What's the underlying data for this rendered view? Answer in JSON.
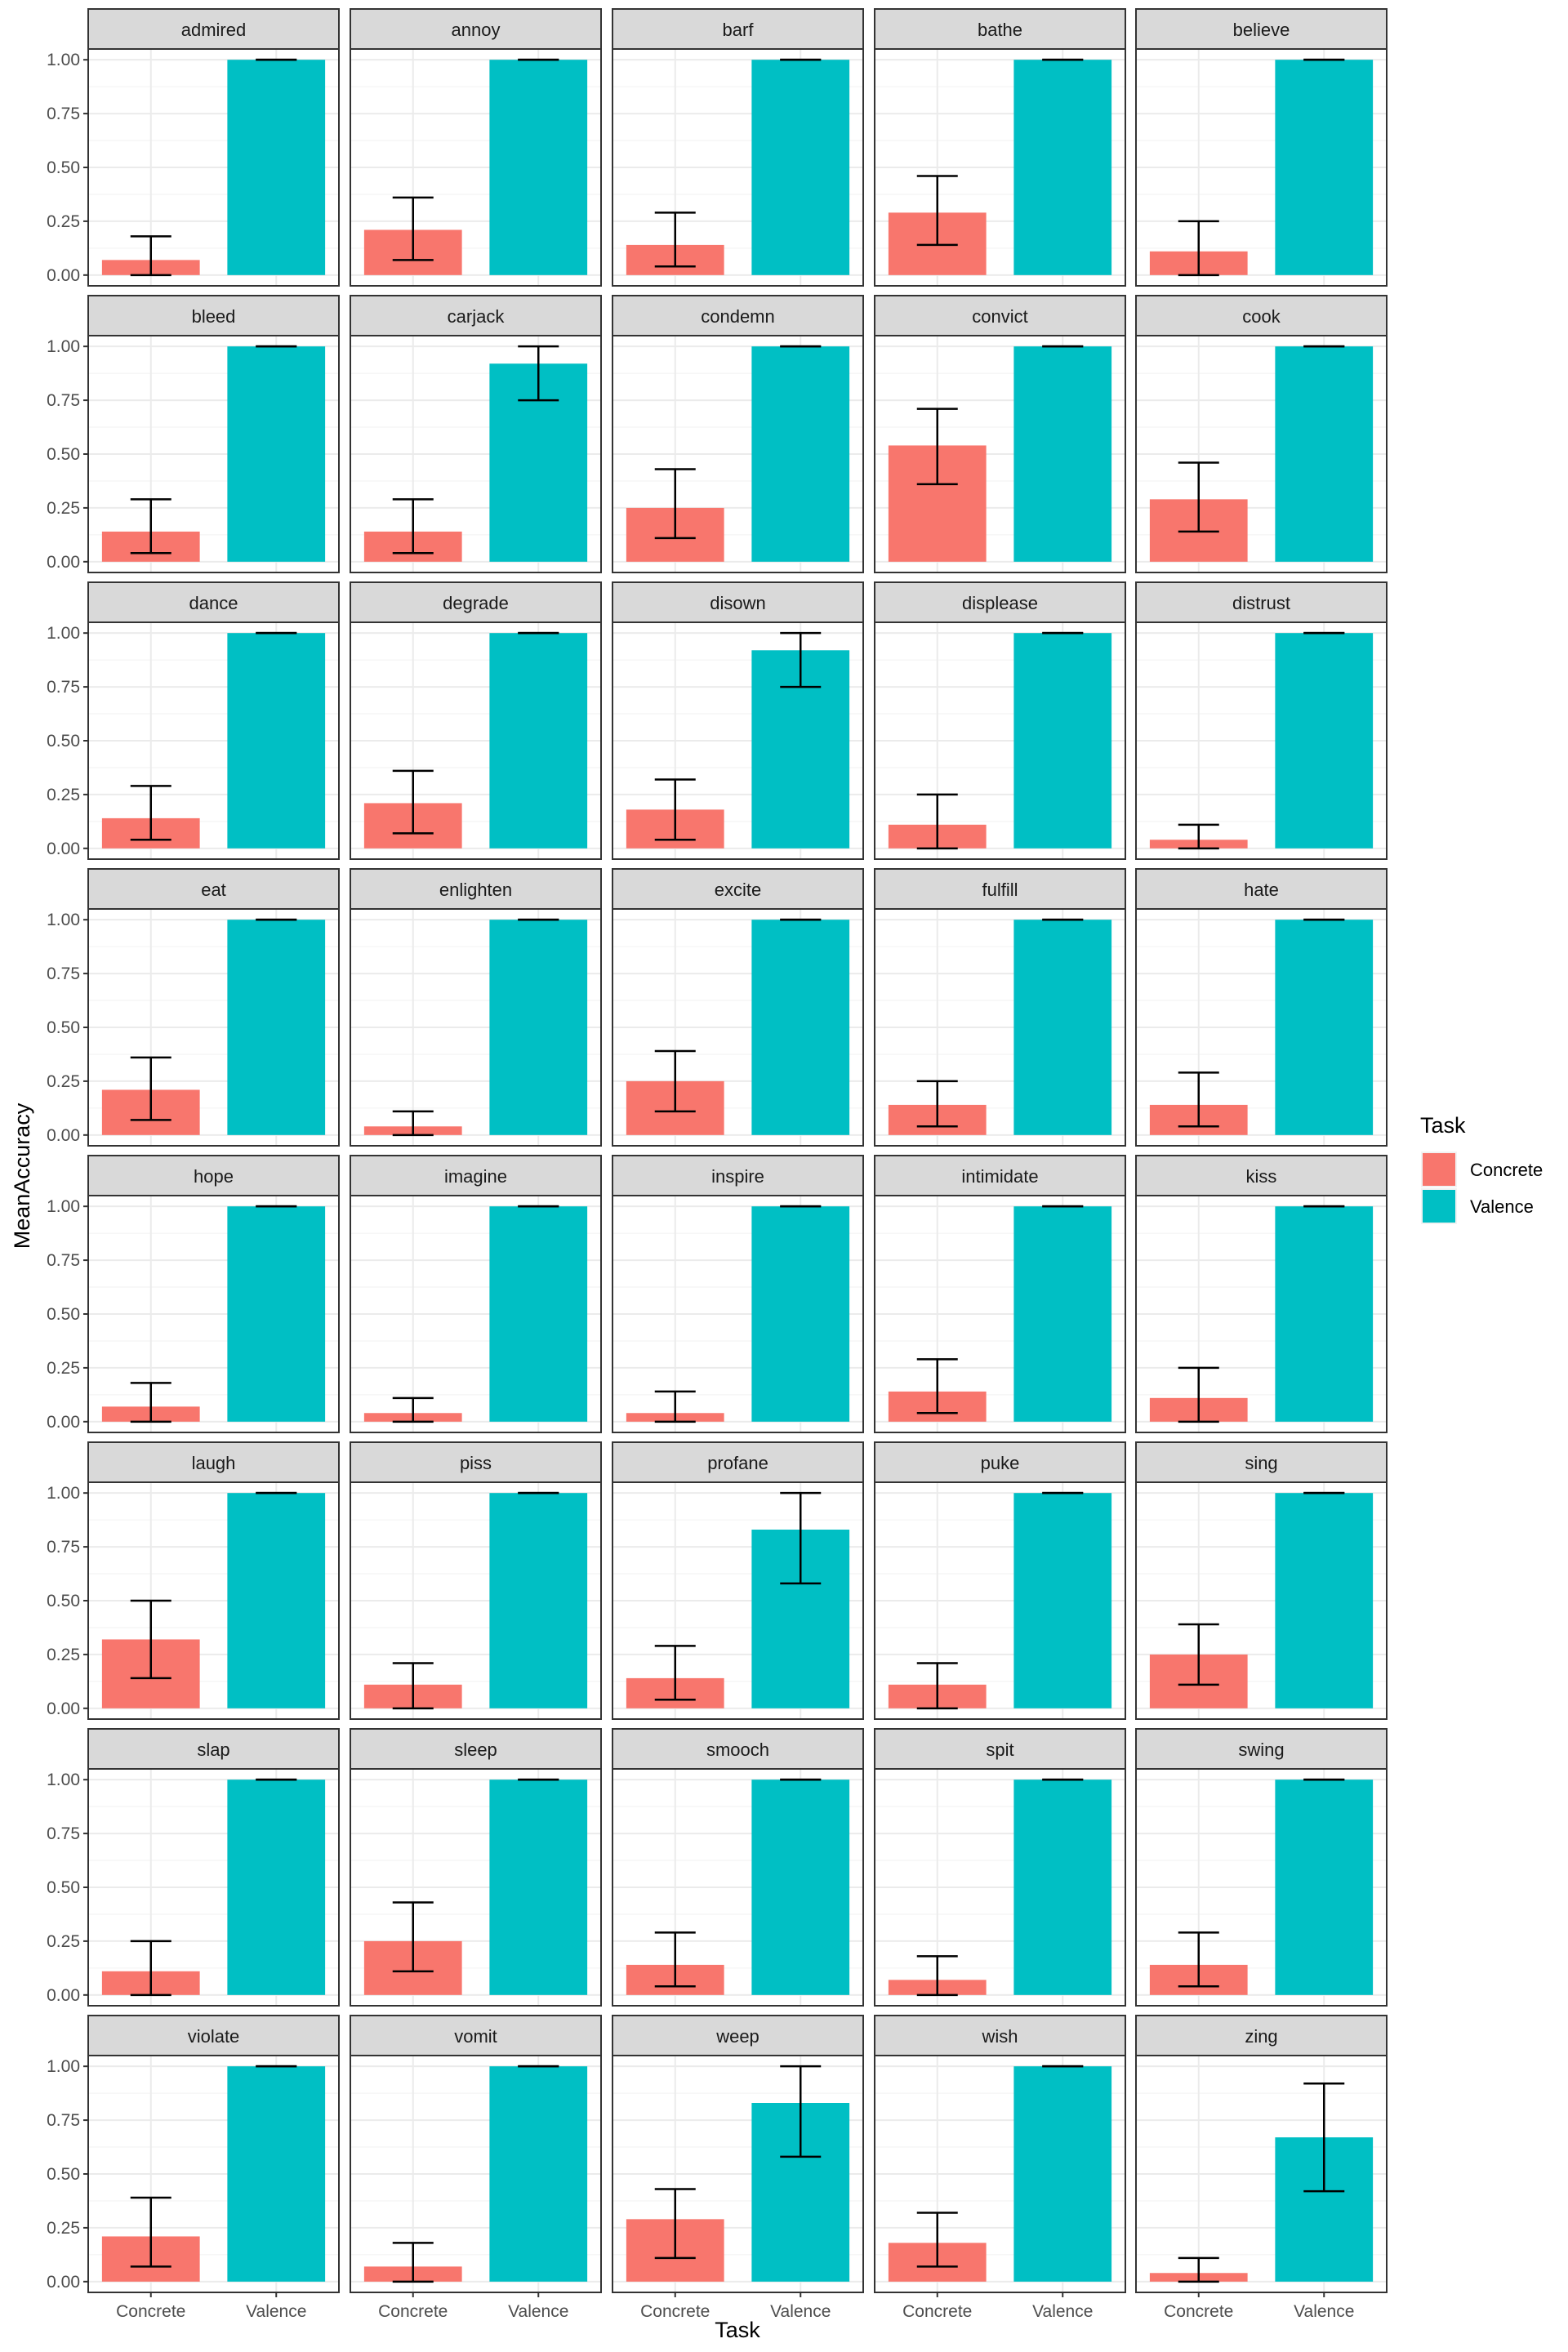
{
  "chart_data": {
    "type": "bar",
    "xlabel": "Task",
    "ylabel": "MeanAccuracy",
    "ylim": [
      0,
      1
    ],
    "yticks": [
      "0.00",
      "0.25",
      "0.50",
      "0.75",
      "1.00"
    ],
    "categories": [
      "Concrete",
      "Valence"
    ],
    "legend": {
      "title": "Task",
      "position": "right",
      "items": [
        {
          "label": "Concrete",
          "color": "#F8766D"
        },
        {
          "label": "Valence",
          "color": "#00BFC4"
        }
      ]
    },
    "facets": [
      {
        "name": "admired",
        "values": [
          0.07,
          1.0
        ],
        "errors": [
          [
            0.0,
            0.18
          ],
          [
            1.0,
            1.0
          ]
        ]
      },
      {
        "name": "annoy",
        "values": [
          0.21,
          1.0
        ],
        "errors": [
          [
            0.07,
            0.36
          ],
          [
            1.0,
            1.0
          ]
        ]
      },
      {
        "name": "barf",
        "values": [
          0.14,
          1.0
        ],
        "errors": [
          [
            0.04,
            0.29
          ],
          [
            1.0,
            1.0
          ]
        ]
      },
      {
        "name": "bathe",
        "values": [
          0.29,
          1.0
        ],
        "errors": [
          [
            0.14,
            0.46
          ],
          [
            1.0,
            1.0
          ]
        ]
      },
      {
        "name": "believe",
        "values": [
          0.11,
          1.0
        ],
        "errors": [
          [
            0.0,
            0.25
          ],
          [
            1.0,
            1.0
          ]
        ]
      },
      {
        "name": "bleed",
        "values": [
          0.14,
          1.0
        ],
        "errors": [
          [
            0.04,
            0.29
          ],
          [
            1.0,
            1.0
          ]
        ]
      },
      {
        "name": "carjack",
        "values": [
          0.14,
          0.92
        ],
        "errors": [
          [
            0.04,
            0.29
          ],
          [
            0.75,
            1.0
          ]
        ]
      },
      {
        "name": "condemn",
        "values": [
          0.25,
          1.0
        ],
        "errors": [
          [
            0.11,
            0.43
          ],
          [
            1.0,
            1.0
          ]
        ]
      },
      {
        "name": "convict",
        "values": [
          0.54,
          1.0
        ],
        "errors": [
          [
            0.36,
            0.71
          ],
          [
            1.0,
            1.0
          ]
        ]
      },
      {
        "name": "cook",
        "values": [
          0.29,
          1.0
        ],
        "errors": [
          [
            0.14,
            0.46
          ],
          [
            1.0,
            1.0
          ]
        ]
      },
      {
        "name": "dance",
        "values": [
          0.14,
          1.0
        ],
        "errors": [
          [
            0.04,
            0.29
          ],
          [
            1.0,
            1.0
          ]
        ]
      },
      {
        "name": "degrade",
        "values": [
          0.21,
          1.0
        ],
        "errors": [
          [
            0.07,
            0.36
          ],
          [
            1.0,
            1.0
          ]
        ]
      },
      {
        "name": "disown",
        "values": [
          0.18,
          0.92
        ],
        "errors": [
          [
            0.04,
            0.32
          ],
          [
            0.75,
            1.0
          ]
        ]
      },
      {
        "name": "displease",
        "values": [
          0.11,
          1.0
        ],
        "errors": [
          [
            0.0,
            0.25
          ],
          [
            1.0,
            1.0
          ]
        ]
      },
      {
        "name": "distrust",
        "values": [
          0.04,
          1.0
        ],
        "errors": [
          [
            0.0,
            0.11
          ],
          [
            1.0,
            1.0
          ]
        ]
      },
      {
        "name": "eat",
        "values": [
          0.21,
          1.0
        ],
        "errors": [
          [
            0.07,
            0.36
          ],
          [
            1.0,
            1.0
          ]
        ]
      },
      {
        "name": "enlighten",
        "values": [
          0.04,
          1.0
        ],
        "errors": [
          [
            0.0,
            0.11
          ],
          [
            1.0,
            1.0
          ]
        ]
      },
      {
        "name": "excite",
        "values": [
          0.25,
          1.0
        ],
        "errors": [
          [
            0.11,
            0.39
          ],
          [
            1.0,
            1.0
          ]
        ]
      },
      {
        "name": "fulfill",
        "values": [
          0.14,
          1.0
        ],
        "errors": [
          [
            0.04,
            0.25
          ],
          [
            1.0,
            1.0
          ]
        ]
      },
      {
        "name": "hate",
        "values": [
          0.14,
          1.0
        ],
        "errors": [
          [
            0.04,
            0.29
          ],
          [
            1.0,
            1.0
          ]
        ]
      },
      {
        "name": "hope",
        "values": [
          0.07,
          1.0
        ],
        "errors": [
          [
            0.0,
            0.18
          ],
          [
            1.0,
            1.0
          ]
        ]
      },
      {
        "name": "imagine",
        "values": [
          0.04,
          1.0
        ],
        "errors": [
          [
            0.0,
            0.11
          ],
          [
            1.0,
            1.0
          ]
        ]
      },
      {
        "name": "inspire",
        "values": [
          0.04,
          1.0
        ],
        "errors": [
          [
            0.0,
            0.14
          ],
          [
            1.0,
            1.0
          ]
        ]
      },
      {
        "name": "intimidate",
        "values": [
          0.14,
          1.0
        ],
        "errors": [
          [
            0.04,
            0.29
          ],
          [
            1.0,
            1.0
          ]
        ]
      },
      {
        "name": "kiss",
        "values": [
          0.11,
          1.0
        ],
        "errors": [
          [
            0.0,
            0.25
          ],
          [
            1.0,
            1.0
          ]
        ]
      },
      {
        "name": "laugh",
        "values": [
          0.32,
          1.0
        ],
        "errors": [
          [
            0.14,
            0.5
          ],
          [
            1.0,
            1.0
          ]
        ]
      },
      {
        "name": "piss",
        "values": [
          0.11,
          1.0
        ],
        "errors": [
          [
            0.0,
            0.21
          ],
          [
            1.0,
            1.0
          ]
        ]
      },
      {
        "name": "profane",
        "values": [
          0.14,
          0.83
        ],
        "errors": [
          [
            0.04,
            0.29
          ],
          [
            0.58,
            1.0
          ]
        ]
      },
      {
        "name": "puke",
        "values": [
          0.11,
          1.0
        ],
        "errors": [
          [
            0.0,
            0.21
          ],
          [
            1.0,
            1.0
          ]
        ]
      },
      {
        "name": "sing",
        "values": [
          0.25,
          1.0
        ],
        "errors": [
          [
            0.11,
            0.39
          ],
          [
            1.0,
            1.0
          ]
        ]
      },
      {
        "name": "slap",
        "values": [
          0.11,
          1.0
        ],
        "errors": [
          [
            0.0,
            0.25
          ],
          [
            1.0,
            1.0
          ]
        ]
      },
      {
        "name": "sleep",
        "values": [
          0.25,
          1.0
        ],
        "errors": [
          [
            0.11,
            0.43
          ],
          [
            1.0,
            1.0
          ]
        ]
      },
      {
        "name": "smooch",
        "values": [
          0.14,
          1.0
        ],
        "errors": [
          [
            0.04,
            0.29
          ],
          [
            1.0,
            1.0
          ]
        ]
      },
      {
        "name": "spit",
        "values": [
          0.07,
          1.0
        ],
        "errors": [
          [
            0.0,
            0.18
          ],
          [
            1.0,
            1.0
          ]
        ]
      },
      {
        "name": "swing",
        "values": [
          0.14,
          1.0
        ],
        "errors": [
          [
            0.04,
            0.29
          ],
          [
            1.0,
            1.0
          ]
        ]
      },
      {
        "name": "violate",
        "values": [
          0.21,
          1.0
        ],
        "errors": [
          [
            0.07,
            0.39
          ],
          [
            1.0,
            1.0
          ]
        ]
      },
      {
        "name": "vomit",
        "values": [
          0.07,
          1.0
        ],
        "errors": [
          [
            0.0,
            0.18
          ],
          [
            1.0,
            1.0
          ]
        ]
      },
      {
        "name": "weep",
        "values": [
          0.29,
          0.83
        ],
        "errors": [
          [
            0.11,
            0.43
          ],
          [
            0.58,
            1.0
          ]
        ]
      },
      {
        "name": "wish",
        "values": [
          0.18,
          1.0
        ],
        "errors": [
          [
            0.07,
            0.32
          ],
          [
            1.0,
            1.0
          ]
        ]
      },
      {
        "name": "zing",
        "values": [
          0.04,
          0.67
        ],
        "errors": [
          [
            0.0,
            0.11
          ],
          [
            0.42,
            0.92
          ]
        ]
      }
    ]
  }
}
